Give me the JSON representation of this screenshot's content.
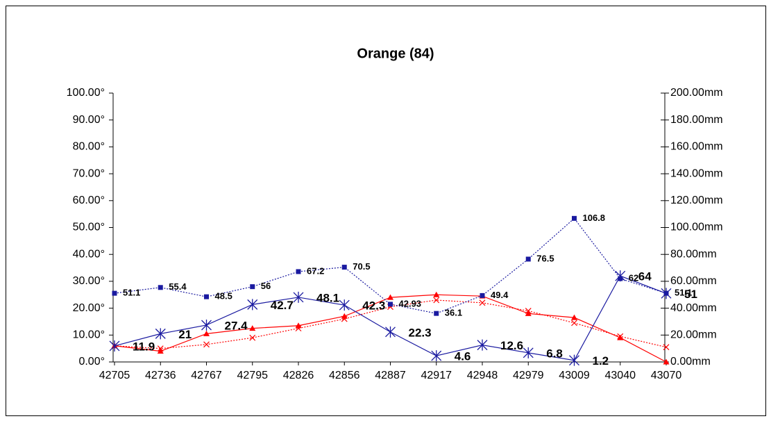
{
  "chart_data": {
    "type": "line",
    "title": "Orange (84)",
    "categories": [
      "42705",
      "42736",
      "42767",
      "42795",
      "42826",
      "42856",
      "42887",
      "42917",
      "42948",
      "42979",
      "43009",
      "43040",
      "43070"
    ],
    "ylim": [
      0,
      100
    ],
    "yticks": [
      {
        "value": 0,
        "label": "0.00°"
      },
      {
        "value": 10,
        "label": "10.00°"
      },
      {
        "value": 20,
        "label": "20.00°"
      },
      {
        "value": 30,
        "label": "30.00°"
      },
      {
        "value": 40,
        "label": "40.00°"
      },
      {
        "value": 50,
        "label": "50.00°"
      },
      {
        "value": 60,
        "label": "60.00°"
      },
      {
        "value": 70,
        "label": "70.00°"
      },
      {
        "value": 80,
        "label": "80.00°"
      },
      {
        "value": 90,
        "label": "90.00°"
      },
      {
        "value": 100,
        "label": "100.00°"
      }
    ],
    "y2lim": [
      0,
      200
    ],
    "y2ticks": [
      {
        "value": 0,
        "label": "0.00mm"
      },
      {
        "value": 20,
        "label": "20.00mm"
      },
      {
        "value": 40,
        "label": "40.00mm"
      },
      {
        "value": 60,
        "label": "60.00mm"
      },
      {
        "value": 80,
        "label": "80.00mm"
      },
      {
        "value": 100,
        "label": "100.00mm"
      },
      {
        "value": 120,
        "label": "120.00mm"
      },
      {
        "value": 140,
        "label": "140.00mm"
      },
      {
        "value": 160,
        "label": "160.00mm"
      },
      {
        "value": 180,
        "label": "180.00mm"
      },
      {
        "value": 200,
        "label": "200.00mm"
      }
    ],
    "series": [
      {
        "color": "#1a1aa0",
        "label_color": "#1a3cff",
        "marker": "square",
        "dash": true,
        "axis": "y2",
        "labels": true,
        "values": [
          51.1,
          55.4,
          48.5,
          56,
          67.2,
          70.5,
          42.93,
          36.1,
          49.4,
          76.5,
          106.8,
          62,
          51.1
        ]
      },
      {
        "color": "#1a1aa0",
        "label_color": "#ff0000",
        "marker": "star",
        "dash": false,
        "axis": "y2",
        "labels": true,
        "values": [
          11.9,
          21,
          27.4,
          42.7,
          48.1,
          42.3,
          22.3,
          4.6,
          12.6,
          6.8,
          1.2,
          64,
          51
        ]
      },
      {
        "color": "#ff0000",
        "marker": "triangle",
        "dash": false,
        "labels": false,
        "values": [
          6,
          4,
          10.5,
          12.5,
          13.5,
          17,
          24,
          25,
          24.5,
          18,
          16.5,
          9,
          0
        ]
      },
      {
        "color": "#ff0000",
        "marker": "cross",
        "dash": true,
        "labels": false,
        "values": [
          6,
          5,
          6.5,
          9,
          12.5,
          16,
          20.5,
          23,
          22,
          19,
          14.5,
          9.5,
          5.5
        ]
      }
    ]
  }
}
